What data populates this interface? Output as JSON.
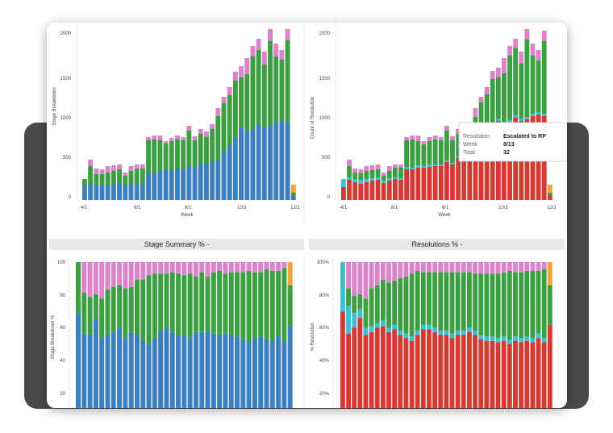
{
  "colors": {
    "blue": "#3a7fbf",
    "green": "#3aa040",
    "pink": "#dc84cb",
    "red": "#d43a32",
    "cyan": "#3cbfd2",
    "orange": "#f2a33c",
    "panel_header": "#e8e8e8"
  },
  "chart_data": [
    {
      "id": "stage-breakdown",
      "type": "bar",
      "stacked": true,
      "xlabel": "Week",
      "ylabel": "Stage Breakdown",
      "ylim": [
        0,
        2100
      ],
      "yticks": [
        "0",
        "500",
        "1000",
        "1500",
        "2000"
      ],
      "ytick_values": [
        0,
        500,
        1000,
        1500,
        2000
      ],
      "xticks": [
        {
          "label": "4/1",
          "index": 0
        },
        {
          "label": "6/1",
          "index": 9
        },
        {
          "label": "8/1",
          "index": 18
        },
        {
          "label": "10/1",
          "index": 27
        },
        {
          "label": "12/1",
          "index": 36
        }
      ],
      "n_weeks": 37,
      "series": [
        {
          "color_key": "blue",
          "values": [
            180,
            200,
            190,
            180,
            180,
            200,
            210,
            180,
            200,
            190,
            200,
            340,
            330,
            360,
            380,
            370,
            390,
            380,
            420,
            400,
            460,
            440,
            480,
            500,
            600,
            680,
            780,
            900,
            860,
            880,
            940,
            900,
            920,
            960,
            980,
            960,
            50
          ]
        },
        {
          "color_key": "green",
          "values": [
            80,
            220,
            130,
            140,
            160,
            160,
            170,
            120,
            160,
            200,
            190,
            400,
            420,
            380,
            320,
            360,
            360,
            360,
            440,
            340,
            360,
            340,
            400,
            540,
            600,
            620,
            700,
            620,
            700,
            900,
            920,
            780,
            1140,
            820,
            760,
            1020,
            40
          ]
        },
        {
          "color_key": "pink",
          "values": [
            0,
            80,
            70,
            60,
            80,
            70,
            60,
            40,
            60,
            50,
            50,
            40,
            50,
            60,
            30,
            40,
            50,
            40,
            60,
            50,
            60,
            70,
            60,
            100,
            80,
            100,
            110,
            140,
            200,
            130,
            140,
            160,
            150,
            160,
            120,
            140,
            0
          ]
        },
        {
          "color_key": "orange",
          "values": [
            0,
            0,
            0,
            0,
            0,
            0,
            0,
            0,
            0,
            0,
            0,
            0,
            0,
            0,
            0,
            0,
            0,
            0,
            0,
            0,
            0,
            0,
            0,
            0,
            0,
            0,
            0,
            0,
            0,
            0,
            0,
            0,
            0,
            0,
            0,
            0,
            100
          ]
        }
      ]
    },
    {
      "id": "resolution-count",
      "type": "bar",
      "stacked": true,
      "xlabel": "Week",
      "ylabel": "Count of Resolution",
      "ylim": [
        0,
        2100
      ],
      "yticks": [
        "0",
        "500",
        "1000",
        "1500",
        "2000"
      ],
      "ytick_values": [
        0,
        500,
        1000,
        1500,
        2000
      ],
      "xticks": [
        {
          "label": "4/1",
          "index": 0
        },
        {
          "label": "6/1",
          "index": 9
        },
        {
          "label": "8/1",
          "index": 18
        },
        {
          "label": "10/1",
          "index": 27
        },
        {
          "label": "12/1",
          "index": 36
        }
      ],
      "n_weeks": 37,
      "series": [
        {
          "color_key": "red",
          "values": [
            160,
            250,
            220,
            200,
            220,
            240,
            250,
            210,
            240,
            260,
            250,
            380,
            380,
            400,
            400,
            410,
            420,
            420,
            470,
            440,
            520,
            500,
            540,
            580,
            680,
            760,
            860,
            980,
            940,
            960,
            1020,
            980,
            1000,
            1040,
            1060,
            1040,
            60
          ]
        },
        {
          "color_key": "cyan",
          "values": [
            100,
            30,
            40,
            50,
            40,
            30,
            30,
            30,
            30,
            20,
            20,
            30,
            20,
            30,
            20,
            30,
            20,
            20,
            20,
            20,
            20,
            20,
            20,
            30,
            30,
            30,
            30,
            30,
            30,
            30,
            30,
            30,
            30,
            30,
            30,
            30,
            0
          ]
        },
        {
          "color_key": "green",
          "values": [
            0,
            140,
            80,
            80,
            100,
            100,
            100,
            60,
            90,
            120,
            130,
            330,
            350,
            300,
            270,
            290,
            310,
            300,
            370,
            280,
            280,
            270,
            320,
            420,
            500,
            520,
            610,
            510,
            600,
            800,
            830,
            680,
            1050,
            720,
            640,
            900,
            30
          ]
        },
        {
          "color_key": "pink",
          "values": [
            0,
            80,
            50,
            50,
            60,
            60,
            60,
            40,
            60,
            40,
            40,
            40,
            50,
            70,
            40,
            50,
            50,
            40,
            60,
            50,
            60,
            70,
            60,
            110,
            70,
            90,
            100,
            120,
            190,
            120,
            120,
            150,
            130,
            150,
            130,
            130,
            0
          ]
        },
        {
          "color_key": "orange",
          "values": [
            0,
            0,
            0,
            0,
            0,
            0,
            0,
            0,
            0,
            0,
            0,
            0,
            0,
            0,
            0,
            0,
            0,
            0,
            0,
            0,
            0,
            0,
            0,
            0,
            0,
            0,
            0,
            0,
            0,
            0,
            0,
            0,
            0,
            0,
            0,
            0,
            100
          ]
        }
      ],
      "tooltip": {
        "rows": [
          {
            "key": "Resolution",
            "value": "Escalated to RP"
          },
          {
            "key": "Week",
            "value": "8/13"
          },
          {
            "key": "Total",
            "value": "32"
          }
        ]
      }
    },
    {
      "id": "stage-summary-pct",
      "type": "bar",
      "stacked": true,
      "percent": true,
      "title": "Stage Summary % -",
      "ylabel": "Stage Breakdown %",
      "ylim": [
        0,
        1
      ],
      "yticks": [
        "100",
        "80",
        "60",
        "40",
        "20"
      ],
      "ytick_values": [
        1.0,
        0.8,
        0.6,
        0.4,
        0.2
      ],
      "n_weeks": 37,
      "series": [
        {
          "color_key": "blue",
          "values": [
            0.65,
            0.51,
            0.5,
            0.61,
            0.48,
            0.5,
            0.52,
            0.55,
            0.48,
            0.52,
            0.5,
            0.46,
            0.44,
            0.48,
            0.53,
            0.55,
            0.52,
            0.5,
            0.5,
            0.48,
            0.52,
            0.52,
            0.53,
            0.51,
            0.5,
            0.51,
            0.5,
            0.49,
            0.47,
            0.45,
            0.48,
            0.49,
            0.47,
            0.46,
            0.5,
            0.45,
            0.56
          ]
        },
        {
          "color_key": "green",
          "values": [
            0.35,
            0.28,
            0.26,
            0.17,
            0.27,
            0.31,
            0.31,
            0.29,
            0.34,
            0.31,
            0.38,
            0.42,
            0.47,
            0.44,
            0.39,
            0.37,
            0.41,
            0.42,
            0.41,
            0.44,
            0.38,
            0.41,
            0.37,
            0.42,
            0.44,
            0.41,
            0.43,
            0.44,
            0.46,
            0.49,
            0.45,
            0.44,
            0.48,
            0.48,
            0.44,
            0.51,
            0.28
          ]
        },
        {
          "color_key": "pink",
          "values": [
            0.0,
            0.21,
            0.24,
            0.22,
            0.25,
            0.19,
            0.17,
            0.16,
            0.18,
            0.17,
            0.12,
            0.12,
            0.09,
            0.08,
            0.08,
            0.08,
            0.07,
            0.08,
            0.09,
            0.08,
            0.1,
            0.07,
            0.1,
            0.07,
            0.06,
            0.08,
            0.07,
            0.07,
            0.07,
            0.06,
            0.07,
            0.07,
            0.05,
            0.06,
            0.06,
            0.04,
            0.0
          ]
        },
        {
          "color_key": "orange",
          "values": [
            0,
            0,
            0,
            0,
            0,
            0,
            0,
            0,
            0,
            0,
            0,
            0,
            0,
            0,
            0,
            0,
            0,
            0,
            0,
            0,
            0,
            0,
            0,
            0,
            0,
            0,
            0,
            0,
            0,
            0,
            0,
            0,
            0,
            0,
            0,
            0,
            0.16
          ]
        }
      ]
    },
    {
      "id": "resolutions-pct",
      "type": "bar",
      "stacked": true,
      "percent": true,
      "title": "Resolutions % -",
      "ylabel": "% Resolution",
      "ylim": [
        0,
        1
      ],
      "yticks": [
        "100%",
        "80%",
        "60%",
        "40%",
        "20%"
      ],
      "ytick_values": [
        1.0,
        0.8,
        0.6,
        0.4,
        0.2
      ],
      "n_weeks": 37,
      "series": [
        {
          "color_key": "red",
          "values": [
            0.66,
            0.51,
            0.55,
            0.62,
            0.5,
            0.52,
            0.55,
            0.56,
            0.52,
            0.54,
            0.5,
            0.48,
            0.46,
            0.5,
            0.54,
            0.54,
            0.52,
            0.5,
            0.5,
            0.48,
            0.5,
            0.5,
            0.52,
            0.5,
            0.47,
            0.46,
            0.46,
            0.45,
            0.46,
            0.44,
            0.46,
            0.45,
            0.46,
            0.45,
            0.48,
            0.45,
            0.57
          ]
        },
        {
          "color_key": "cyan",
          "values": [
            0.34,
            0.19,
            0.1,
            0.06,
            0.05,
            0.04,
            0.03,
            0.04,
            0.03,
            0.03,
            0.03,
            0.03,
            0.03,
            0.03,
            0.03,
            0.03,
            0.03,
            0.03,
            0.03,
            0.03,
            0.03,
            0.03,
            0.03,
            0.03,
            0.03,
            0.03,
            0.03,
            0.03,
            0.03,
            0.03,
            0.03,
            0.03,
            0.03,
            0.03,
            0.03,
            0.03,
            0.0
          ]
        },
        {
          "color_key": "green",
          "values": [
            0.0,
            0.12,
            0.12,
            0.1,
            0.2,
            0.26,
            0.26,
            0.28,
            0.31,
            0.3,
            0.36,
            0.39,
            0.43,
            0.41,
            0.36,
            0.36,
            0.38,
            0.4,
            0.4,
            0.42,
            0.4,
            0.4,
            0.38,
            0.39,
            0.42,
            0.43,
            0.43,
            0.44,
            0.44,
            0.47,
            0.44,
            0.45,
            0.45,
            0.46,
            0.43,
            0.47,
            0.27
          ]
        },
        {
          "color_key": "pink",
          "values": [
            0.0,
            0.18,
            0.23,
            0.22,
            0.25,
            0.18,
            0.16,
            0.12,
            0.14,
            0.13,
            0.11,
            0.1,
            0.08,
            0.06,
            0.07,
            0.07,
            0.07,
            0.07,
            0.07,
            0.07,
            0.07,
            0.07,
            0.07,
            0.08,
            0.08,
            0.08,
            0.08,
            0.08,
            0.07,
            0.06,
            0.07,
            0.07,
            0.06,
            0.06,
            0.06,
            0.05,
            0.0
          ]
        },
        {
          "color_key": "orange",
          "values": [
            0,
            0,
            0,
            0,
            0,
            0,
            0,
            0,
            0,
            0,
            0,
            0,
            0,
            0,
            0,
            0,
            0,
            0,
            0,
            0,
            0,
            0,
            0,
            0,
            0,
            0,
            0,
            0,
            0,
            0,
            0,
            0,
            0,
            0,
            0,
            0,
            0.16
          ]
        }
      ]
    }
  ]
}
